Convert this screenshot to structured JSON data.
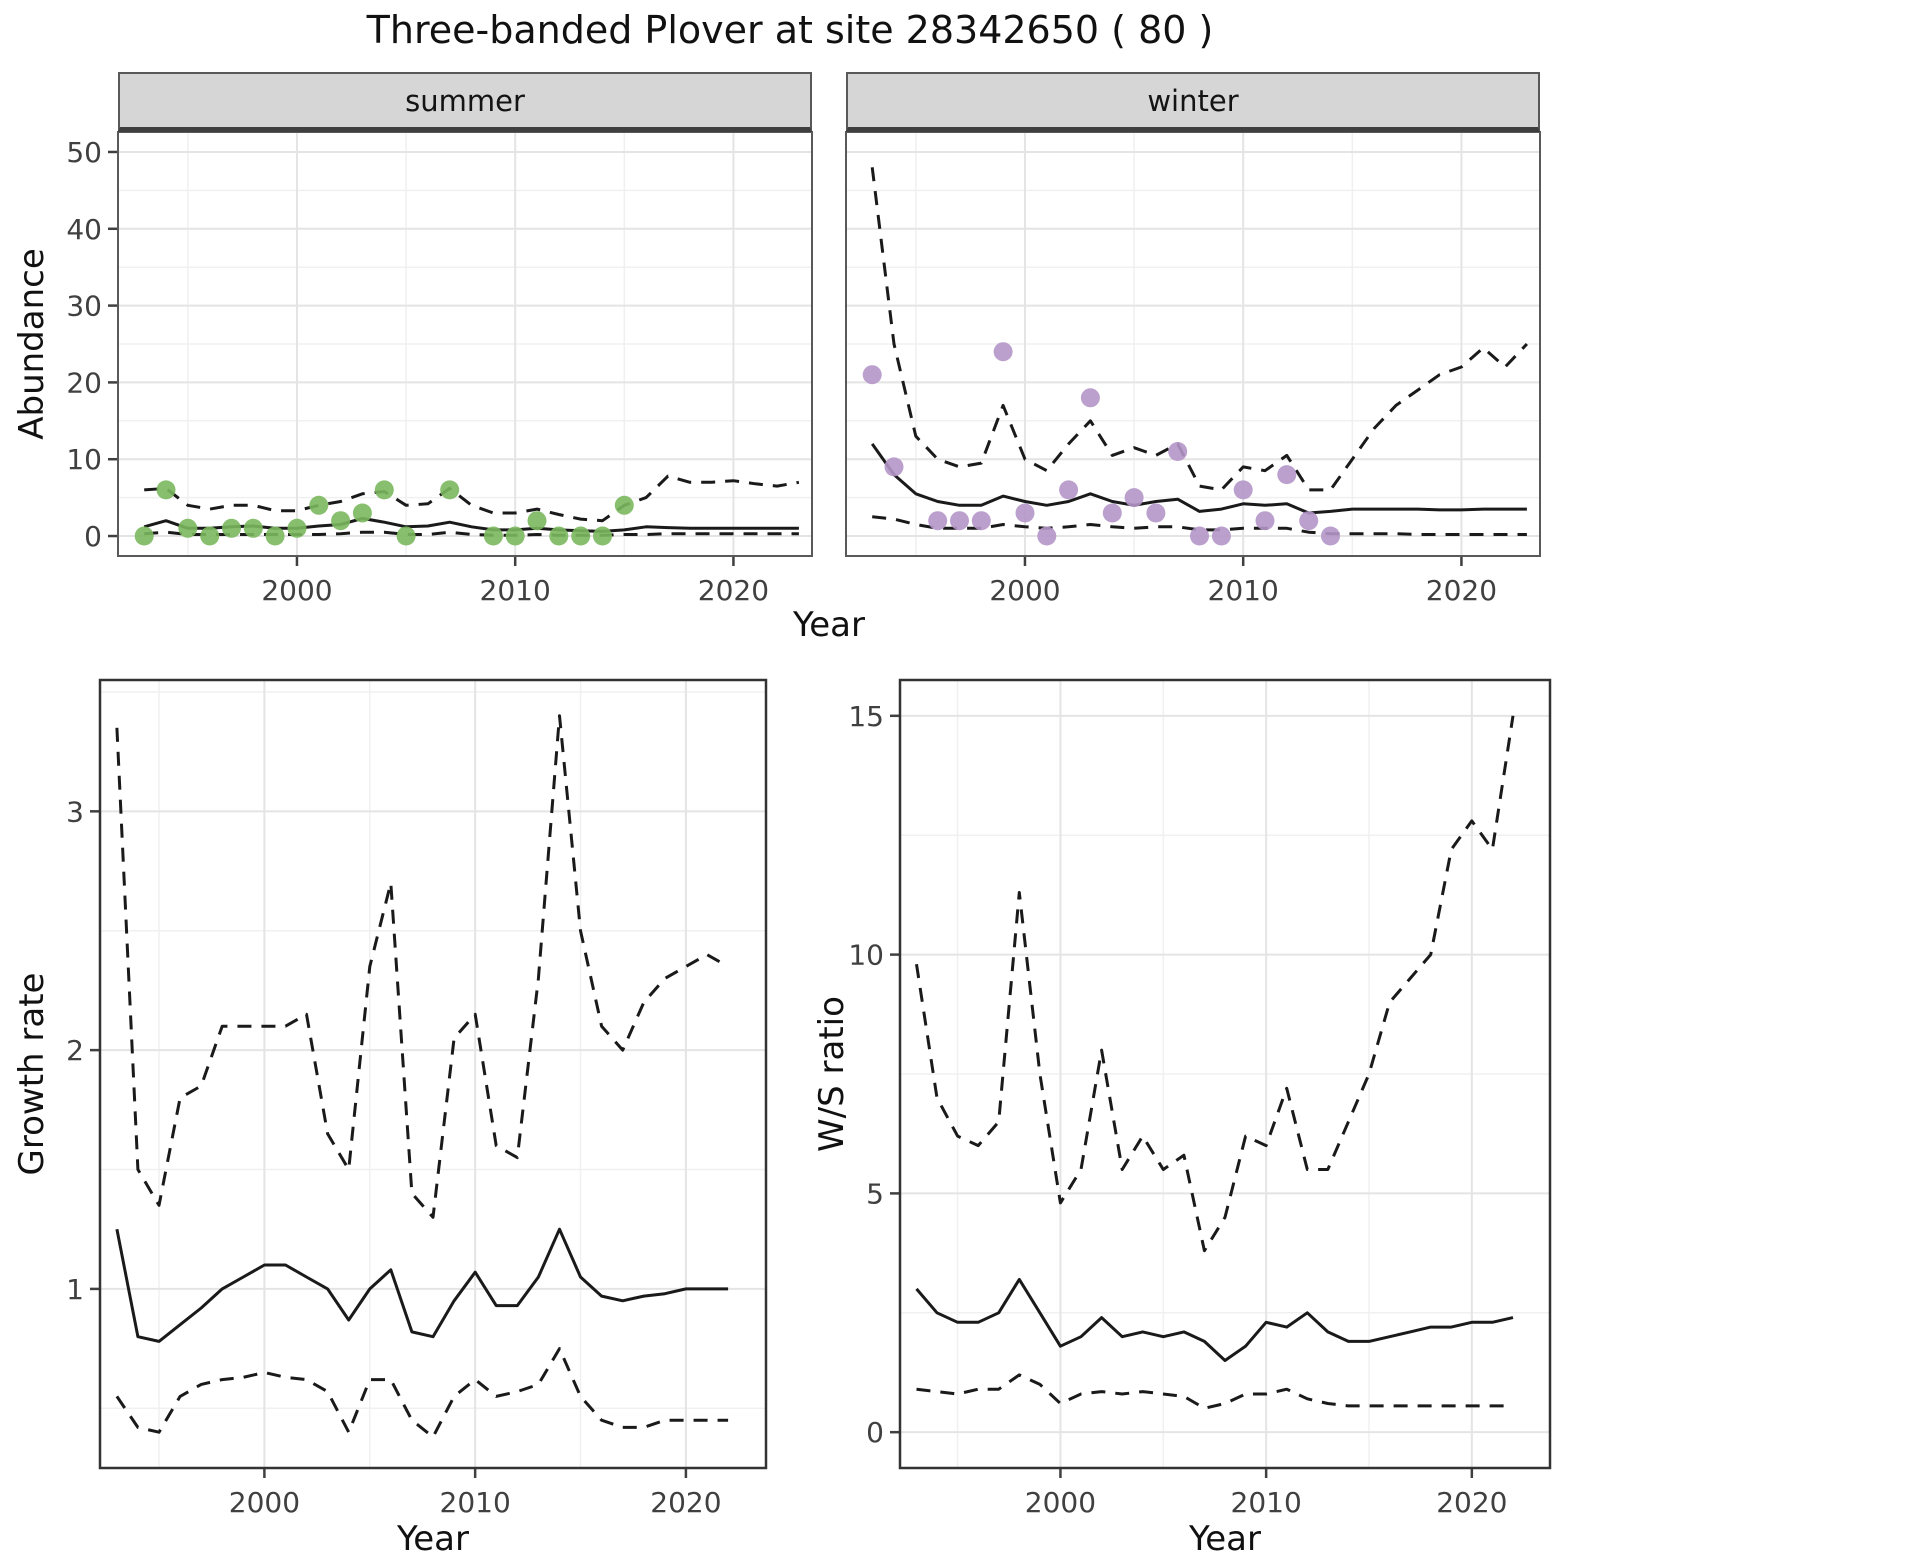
{
  "figure": {
    "title": "Three-banded Plover at site 28342650 ( 80 )"
  },
  "style": {
    "background": "#ffffff",
    "grid_major": "#e4e4e4",
    "grid_minor": "#f0f0f0",
    "axis_text_color": "#404040",
    "panel_border_color": "#4a4a4a",
    "strip_fill": "#d6d6d6",
    "line_color": "#1a1a1a",
    "summer_point_color": "#7bb85e",
    "winter_point_color": "#b496c8"
  },
  "chart_data": [
    {
      "id": "abundance-summer",
      "type": "line",
      "facet_label": "summer",
      "xlabel": "Year",
      "ylabel": "Abundance",
      "xlim": [
        1991.8,
        2023.6
      ],
      "ylim": [
        -2.6,
        52.6
      ],
      "x_ticks": [
        2000,
        2010,
        2020
      ],
      "y_ticks": [
        0,
        10,
        20,
        30,
        40,
        50
      ],
      "x_minor": [
        1995,
        2005,
        2015
      ],
      "y_minor": [
        5,
        15,
        25,
        35,
        45
      ],
      "grid": true,
      "legend": "none",
      "series": [
        {
          "name": "estimate",
          "role": "line",
          "dashed": false,
          "color": "#1a1a1a",
          "x": [
            1993,
            1994,
            1995,
            1996,
            1997,
            1998,
            1999,
            2000,
            2001,
            2002,
            2003,
            2004,
            2005,
            2006,
            2007,
            2008,
            2009,
            2010,
            2011,
            2012,
            2013,
            2014,
            2015,
            2016,
            2017,
            2018,
            2019,
            2020,
            2021,
            2022,
            2023
          ],
          "y": [
            1.2,
            2.0,
            1.0,
            1.0,
            1.2,
            1.3,
            1.0,
            1.0,
            1.3,
            1.5,
            2.3,
            1.8,
            1.2,
            1.3,
            1.8,
            1.2,
            0.8,
            0.8,
            1.0,
            0.8,
            0.7,
            0.6,
            0.8,
            1.2,
            1.1,
            1.0,
            1.0,
            1.0,
            1.0,
            1.0,
            1.0
          ]
        },
        {
          "name": "upper-ci",
          "role": "line",
          "dashed": true,
          "color": "#1a1a1a",
          "x": [
            1993,
            1994,
            1995,
            1996,
            1997,
            1998,
            1999,
            2000,
            2001,
            2002,
            2003,
            2004,
            2005,
            2006,
            2007,
            2008,
            2009,
            2010,
            2011,
            2012,
            2013,
            2014,
            2015,
            2016,
            2017,
            2018,
            2019,
            2020,
            2021,
            2022,
            2023
          ],
          "y": [
            6.0,
            6.2,
            4.0,
            3.5,
            4.0,
            4.0,
            3.3,
            3.3,
            4.0,
            4.5,
            5.5,
            5.8,
            4.0,
            4.2,
            6.2,
            4.0,
            3.0,
            3.0,
            3.5,
            2.8,
            2.2,
            2.0,
            4.0,
            5.0,
            7.8,
            7.0,
            7.0,
            7.2,
            6.8,
            6.5,
            7.0
          ]
        },
        {
          "name": "lower-ci",
          "role": "line",
          "dashed": true,
          "color": "#1a1a1a",
          "x": [
            1993,
            1994,
            1995,
            1996,
            1997,
            1998,
            1999,
            2000,
            2001,
            2002,
            2003,
            2004,
            2005,
            2006,
            2007,
            2008,
            2009,
            2010,
            2011,
            2012,
            2013,
            2014,
            2015,
            2016,
            2017,
            2018,
            2019,
            2020,
            2021,
            2022,
            2023
          ],
          "y": [
            0.3,
            0.5,
            0.2,
            0.2,
            0.2,
            0.2,
            0.2,
            0.2,
            0.2,
            0.3,
            0.5,
            0.5,
            0.2,
            0.2,
            0.5,
            0.2,
            0.1,
            0.1,
            0.2,
            0.1,
            0.1,
            0.1,
            0.2,
            0.2,
            0.3,
            0.3,
            0.3,
            0.3,
            0.3,
            0.3,
            0.3
          ]
        },
        {
          "name": "observed-counts",
          "role": "points",
          "color": "#7bb85e",
          "x": [
            1993,
            1994,
            1995,
            1996,
            1997,
            1998,
            1999,
            2000,
            2001,
            2002,
            2003,
            2004,
            2005,
            2007,
            2009,
            2010,
            2011,
            2012,
            2013,
            2014,
            2015
          ],
          "y": [
            0,
            6,
            1,
            0,
            1,
            1,
            0,
            1,
            4,
            2,
            3,
            6,
            0,
            6,
            0,
            0,
            2,
            0,
            0,
            0,
            4
          ]
        }
      ]
    },
    {
      "id": "abundance-winter",
      "type": "line",
      "facet_label": "winter",
      "xlabel": "Year",
      "ylabel": "Abundance",
      "xlim": [
        1991.8,
        2023.6
      ],
      "ylim": [
        -2.6,
        52.6
      ],
      "x_ticks": [
        2000,
        2010,
        2020
      ],
      "y_ticks": [
        0,
        10,
        20,
        30,
        40,
        50
      ],
      "x_minor": [
        1995,
        2005,
        2015
      ],
      "y_minor": [
        5,
        15,
        25,
        35,
        45
      ],
      "grid": true,
      "legend": "none",
      "series": [
        {
          "name": "estimate",
          "role": "line",
          "dashed": false,
          "color": "#1a1a1a",
          "x": [
            1993,
            1994,
            1995,
            1996,
            1997,
            1998,
            1999,
            2000,
            2001,
            2002,
            2003,
            2004,
            2005,
            2006,
            2007,
            2008,
            2009,
            2010,
            2011,
            2012,
            2013,
            2014,
            2015,
            2016,
            2017,
            2018,
            2019,
            2020,
            2021,
            2022,
            2023
          ],
          "y": [
            12,
            8,
            5.5,
            4.5,
            4,
            4,
            5.2,
            4.5,
            4,
            4.5,
            5.5,
            4.5,
            4,
            4.5,
            4.8,
            3.2,
            3.5,
            4.2,
            4,
            4.2,
            3,
            3.2,
            3.5,
            3.5,
            3.5,
            3.5,
            3.4,
            3.4,
            3.5,
            3.5,
            3.5
          ]
        },
        {
          "name": "upper-ci",
          "role": "line",
          "dashed": true,
          "color": "#1a1a1a",
          "x": [
            1993,
            1994,
            1995,
            1996,
            1997,
            1998,
            1999,
            2000,
            2001,
            2002,
            2003,
            2004,
            2005,
            2006,
            2007,
            2008,
            2009,
            2010,
            2011,
            2012,
            2013,
            2014,
            2015,
            2016,
            2017,
            2018,
            2019,
            2020,
            2021,
            2022,
            2023
          ],
          "y": [
            48,
            25,
            13,
            10,
            9,
            9.5,
            17,
            10,
            8.5,
            12,
            15,
            10.5,
            11.5,
            10.5,
            12,
            6.5,
            6,
            9,
            8.5,
            10.5,
            6,
            6,
            10,
            14,
            17,
            19,
            21,
            22,
            24.5,
            22,
            25
          ]
        },
        {
          "name": "lower-ci",
          "role": "line",
          "dashed": true,
          "color": "#1a1a1a",
          "x": [
            1993,
            1994,
            1995,
            1996,
            1997,
            1998,
            1999,
            2000,
            2001,
            2002,
            2003,
            2004,
            2005,
            2006,
            2007,
            2008,
            2009,
            2010,
            2011,
            2012,
            2013,
            2014,
            2015,
            2016,
            2017,
            2018,
            2019,
            2020,
            2021,
            2022,
            2023
          ],
          "y": [
            2.5,
            2.2,
            1.5,
            1,
            1,
            1,
            1.5,
            1.2,
            1,
            1.2,
            1.5,
            1.2,
            1,
            1.2,
            1.2,
            0.8,
            0.8,
            1,
            1,
            1,
            0.5,
            0.3,
            0.3,
            0.3,
            0.3,
            0.2,
            0.2,
            0.2,
            0.2,
            0.2,
            0.2
          ]
        },
        {
          "name": "observed-counts",
          "role": "points",
          "color": "#b496c8",
          "x": [
            1993,
            1994,
            1996,
            1997,
            1998,
            1999,
            2000,
            2001,
            2002,
            2003,
            2004,
            2005,
            2006,
            2007,
            2008,
            2009,
            2010,
            2011,
            2012,
            2013,
            2014
          ],
          "y": [
            21,
            9,
            2,
            2,
            2,
            24,
            3,
            0,
            6,
            18,
            3,
            5,
            3,
            11,
            0,
            0,
            6,
            2,
            8,
            2,
            0
          ]
        }
      ]
    },
    {
      "id": "growth-rate",
      "type": "line",
      "facet_label": "",
      "xlabel": "Year",
      "ylabel": "Growth rate",
      "xlim": [
        1992.2,
        2023.8
      ],
      "ylim": [
        0.25,
        3.55
      ],
      "x_ticks": [
        2000,
        2010,
        2020
      ],
      "y_ticks": [
        1,
        2,
        3
      ],
      "x_minor": [
        1995,
        2005,
        2015
      ],
      "y_minor": [
        0.5,
        1.5,
        2.5,
        3.5
      ],
      "grid": true,
      "legend": "none",
      "series": [
        {
          "name": "estimate",
          "role": "line",
          "dashed": false,
          "color": "#1a1a1a",
          "x": [
            1993,
            1994,
            1995,
            1996,
            1997,
            1998,
            1999,
            2000,
            2001,
            2002,
            2003,
            2004,
            2005,
            2006,
            2007,
            2008,
            2009,
            2010,
            2011,
            2012,
            2013,
            2014,
            2015,
            2016,
            2017,
            2018,
            2019,
            2020,
            2021,
            2022
          ],
          "y": [
            1.25,
            0.8,
            0.78,
            0.85,
            0.92,
            1.0,
            1.05,
            1.1,
            1.1,
            1.05,
            1.0,
            0.87,
            1.0,
            1.08,
            0.82,
            0.8,
            0.95,
            1.07,
            0.93,
            0.93,
            1.05,
            1.25,
            1.05,
            0.97,
            0.95,
            0.97,
            0.98,
            1.0,
            1.0,
            1.0
          ]
        },
        {
          "name": "upper-ci",
          "role": "line",
          "dashed": true,
          "color": "#1a1a1a",
          "x": [
            1993,
            1994,
            1995,
            1996,
            1997,
            1998,
            1999,
            2000,
            2001,
            2002,
            2003,
            2004,
            2005,
            2006,
            2007,
            2008,
            2009,
            2010,
            2011,
            2012,
            2013,
            2014,
            2015,
            2016,
            2017,
            2018,
            2019,
            2020,
            2021,
            2022
          ],
          "y": [
            3.35,
            1.5,
            1.35,
            1.8,
            1.85,
            2.1,
            2.1,
            2.1,
            2.1,
            2.15,
            1.65,
            1.5,
            2.35,
            2.7,
            1.4,
            1.3,
            2.05,
            2.15,
            1.6,
            1.55,
            2.3,
            3.4,
            2.5,
            2.1,
            2.0,
            2.2,
            2.3,
            2.35,
            2.4,
            2.35
          ]
        },
        {
          "name": "lower-ci",
          "role": "line",
          "dashed": true,
          "color": "#1a1a1a",
          "x": [
            1993,
            1994,
            1995,
            1996,
            1997,
            1998,
            1999,
            2000,
            2001,
            2002,
            2003,
            2004,
            2005,
            2006,
            2007,
            2008,
            2009,
            2010,
            2011,
            2012,
            2013,
            2014,
            2015,
            2016,
            2017,
            2018,
            2019,
            2020,
            2021,
            2022
          ],
          "y": [
            0.55,
            0.42,
            0.4,
            0.55,
            0.6,
            0.62,
            0.63,
            0.65,
            0.63,
            0.62,
            0.57,
            0.4,
            0.62,
            0.62,
            0.45,
            0.38,
            0.55,
            0.62,
            0.55,
            0.57,
            0.6,
            0.75,
            0.55,
            0.45,
            0.42,
            0.42,
            0.45,
            0.45,
            0.45,
            0.45
          ]
        }
      ]
    },
    {
      "id": "ws-ratio",
      "type": "line",
      "facet_label": "",
      "xlabel": "Year",
      "ylabel": "W/S ratio",
      "xlim": [
        1992.2,
        2023.8
      ],
      "ylim": [
        -0.75,
        15.75
      ],
      "x_ticks": [
        2000,
        2010,
        2020
      ],
      "y_ticks": [
        0,
        5,
        10,
        15
      ],
      "x_minor": [
        1995,
        2005,
        2015
      ],
      "y_minor": [
        2.5,
        7.5,
        12.5
      ],
      "grid": true,
      "legend": "none",
      "series": [
        {
          "name": "estimate",
          "role": "line",
          "dashed": false,
          "color": "#1a1a1a",
          "x": [
            1993,
            1994,
            1995,
            1996,
            1997,
            1998,
            1999,
            2000,
            2001,
            2002,
            2003,
            2004,
            2005,
            2006,
            2007,
            2008,
            2009,
            2010,
            2011,
            2012,
            2013,
            2014,
            2015,
            2016,
            2017,
            2018,
            2019,
            2020,
            2021,
            2022
          ],
          "y": [
            3.0,
            2.5,
            2.3,
            2.3,
            2.5,
            3.2,
            2.5,
            1.8,
            2.0,
            2.4,
            2.0,
            2.1,
            2.0,
            2.1,
            1.9,
            1.5,
            1.8,
            2.3,
            2.2,
            2.5,
            2.1,
            1.9,
            1.9,
            2.0,
            2.1,
            2.2,
            2.2,
            2.3,
            2.3,
            2.4
          ]
        },
        {
          "name": "upper-ci",
          "role": "line",
          "dashed": true,
          "color": "#1a1a1a",
          "x": [
            1993,
            1994,
            1995,
            1996,
            1997,
            1998,
            1999,
            2000,
            2001,
            2002,
            2003,
            2004,
            2005,
            2006,
            2007,
            2008,
            2009,
            2010,
            2011,
            2012,
            2013,
            2014,
            2015,
            2016,
            2017,
            2018,
            2019,
            2020,
            2021,
            2022
          ],
          "y": [
            9.8,
            7.0,
            6.2,
            6.0,
            6.5,
            11.3,
            7.5,
            4.8,
            5.5,
            8.0,
            5.5,
            6.2,
            5.5,
            5.8,
            3.8,
            4.5,
            6.2,
            6.0,
            7.2,
            5.5,
            5.5,
            6.5,
            7.5,
            9.0,
            9.5,
            10.0,
            12.2,
            12.8,
            12.2,
            15.0
          ]
        },
        {
          "name": "lower-ci",
          "role": "line",
          "dashed": true,
          "color": "#1a1a1a",
          "x": [
            1993,
            1994,
            1995,
            1996,
            1997,
            1998,
            1999,
            2000,
            2001,
            2002,
            2003,
            2004,
            2005,
            2006,
            2007,
            2008,
            2009,
            2010,
            2011,
            2012,
            2013,
            2014,
            2015,
            2016,
            2017,
            2018,
            2019,
            2020,
            2021,
            2022
          ],
          "y": [
            0.9,
            0.85,
            0.8,
            0.9,
            0.9,
            1.2,
            1.0,
            0.6,
            0.8,
            0.85,
            0.8,
            0.85,
            0.8,
            0.75,
            0.5,
            0.6,
            0.8,
            0.8,
            0.9,
            0.7,
            0.6,
            0.55,
            0.55,
            0.55,
            0.55,
            0.55,
            0.55,
            0.55,
            0.55,
            0.55
          ]
        }
      ]
    }
  ]
}
